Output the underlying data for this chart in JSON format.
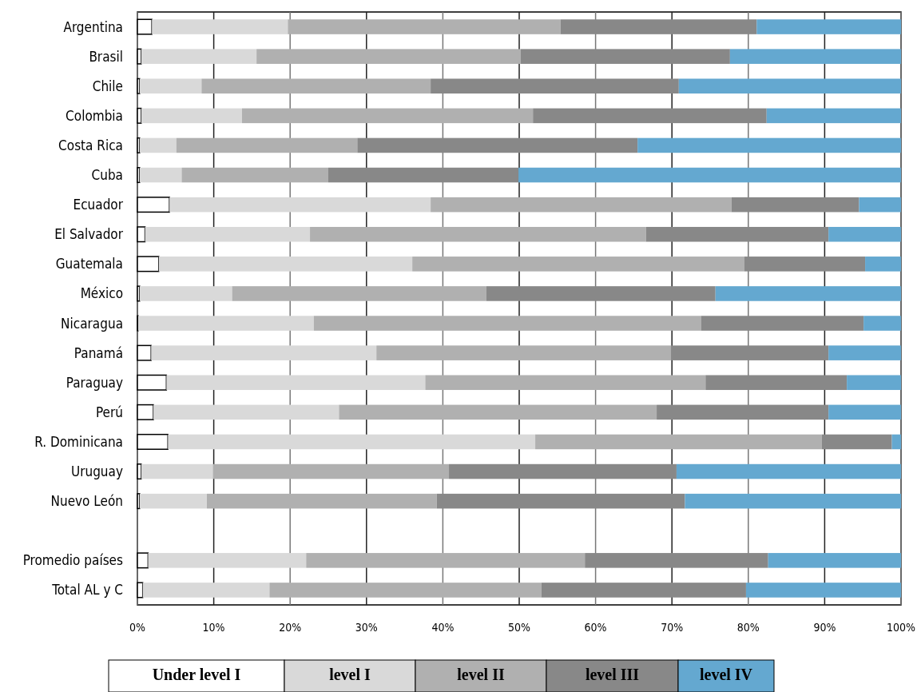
{
  "chart_data": {
    "type": "bar",
    "orientation": "horizontal",
    "stacked": true,
    "categories": [
      "Argentina",
      "Brasil",
      "Chile",
      "Colombia",
      "Costa Rica",
      "Cuba",
      "Ecuador",
      "El Salvador",
      "Guatemala",
      "México",
      "Nicaragua",
      "Panamá",
      "Paraguay",
      "Perú",
      "R. Dominicana",
      "Uruguay",
      "Nuevo León",
      null,
      "Promedio países",
      "Total AL y C"
    ],
    "series": [
      {
        "name": "Under level I",
        "color": "#ffffff",
        "values": [
          1.9,
          0.5,
          0.3,
          0.5,
          0.3,
          0.3,
          4.2,
          1.0,
          2.8,
          0.3,
          0.1,
          1.8,
          3.8,
          2.1,
          4.0,
          0.5,
          0.3,
          null,
          1.4,
          0.7
        ]
      },
      {
        "name": "level I",
        "color": "#d9d9d9",
        "values": [
          17.8,
          15.1,
          8.1,
          13.2,
          4.8,
          5.5,
          34.2,
          21.6,
          33.2,
          12.1,
          23.0,
          29.5,
          33.9,
          24.3,
          48.1,
          9.4,
          8.8,
          null,
          20.7,
          16.6
        ]
      },
      {
        "name": "level II",
        "color": "#b0b0b0",
        "values": [
          35.7,
          34.6,
          30.0,
          38.1,
          23.7,
          19.2,
          39.4,
          44.0,
          43.5,
          33.3,
          50.7,
          38.6,
          36.7,
          41.6,
          37.5,
          30.9,
          30.1,
          null,
          36.5,
          35.6
        ]
      },
      {
        "name": "level III",
        "color": "#888888",
        "values": [
          25.7,
          27.4,
          32.5,
          30.6,
          36.7,
          24.9,
          16.7,
          23.9,
          15.8,
          30.0,
          21.3,
          20.6,
          18.5,
          22.5,
          9.2,
          29.8,
          32.5,
          null,
          24.0,
          26.8
        ]
      },
      {
        "name": "level IV",
        "color": "#64a8d0",
        "values": [
          18.9,
          22.4,
          29.1,
          17.6,
          34.5,
          50.1,
          5.5,
          9.5,
          4.7,
          24.3,
          4.9,
          9.5,
          7.1,
          9.5,
          1.2,
          29.4,
          28.3,
          null,
          17.4,
          20.3
        ]
      }
    ],
    "xlim": [
      0,
      100
    ],
    "xticks": [
      {
        "value": 0,
        "label": "0%"
      },
      {
        "value": 10,
        "label": "10%"
      },
      {
        "value": 20,
        "label": "20%"
      },
      {
        "value": 30,
        "label": "30%"
      },
      {
        "value": 40,
        "label": "40%"
      },
      {
        "value": 50,
        "label": "50%"
      },
      {
        "value": 60,
        "label": "60%"
      },
      {
        "value": 70,
        "label": "70%"
      },
      {
        "value": 80,
        "label": "80%"
      },
      {
        "value": 90,
        "label": "90%"
      },
      {
        "value": 100,
        "label": "100%"
      }
    ],
    "grid": "x",
    "legend": "bottom"
  }
}
